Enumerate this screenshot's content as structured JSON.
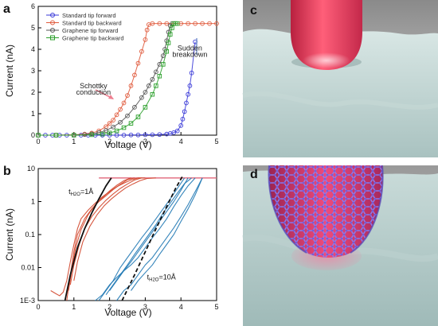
{
  "panels": {
    "a": "a",
    "b": "b",
    "c": "c",
    "d": "d"
  },
  "chart_data": [
    {
      "type": "scatter",
      "panel": "a",
      "xlabel": "Voltage (V)",
      "ylabel": "Current (nA)",
      "xlim": [
        0,
        5
      ],
      "ylim": [
        0,
        6
      ],
      "xticks": [
        "0",
        "1",
        "2",
        "3",
        "4",
        "5"
      ],
      "yticks": [
        "0",
        "1",
        "2",
        "3",
        "4",
        "5",
        "6"
      ],
      "grid": false,
      "legend_position": "top-left",
      "annotations": [
        {
          "text": "Schottky",
          "x": 1.55,
          "y": 2.18
        },
        {
          "text": "conduction",
          "x": 1.55,
          "y": 1.88
        },
        {
          "text": "Sudden",
          "x": 4.25,
          "y": 3.95
        },
        {
          "text": "breakdown",
          "x": 4.25,
          "y": 3.65
        }
      ],
      "series": [
        {
          "name": "Standard tip forward",
          "color": "#3a3ad8",
          "marker": "circle",
          "x": [
            0.0,
            0.2,
            0.4,
            0.6,
            0.8,
            1.0,
            1.2,
            1.4,
            1.6,
            1.8,
            2.0,
            2.2,
            2.4,
            2.6,
            2.8,
            3.0,
            3.2,
            3.4,
            3.6,
            3.7,
            3.8,
            3.9,
            4.0,
            4.05,
            4.1,
            4.15,
            4.2,
            4.25,
            4.3,
            4.4
          ],
          "y": [
            0.0,
            0.0,
            0.0,
            0.0,
            0.0,
            0.0,
            0.0,
            0.0,
            0.0,
            0.0,
            0.0,
            0.0,
            0.0,
            0.01,
            0.01,
            0.02,
            0.02,
            0.03,
            0.05,
            0.08,
            0.12,
            0.2,
            0.45,
            0.75,
            1.1,
            1.5,
            1.9,
            2.3,
            2.9,
            4.35
          ]
        },
        {
          "name": "Standard tip backward",
          "color": "#e05a3c",
          "marker": "circle",
          "x": [
            0.0,
            0.5,
            1.0,
            1.3,
            1.5,
            1.7,
            1.9,
            2.0,
            2.1,
            2.2,
            2.3,
            2.4,
            2.5,
            2.6,
            2.7,
            2.8,
            2.9,
            3.0,
            3.05,
            3.1,
            3.2,
            3.4,
            3.6,
            3.8,
            4.0,
            4.2,
            4.4,
            4.6,
            4.8,
            5.0
          ],
          "y": [
            0.0,
            0.0,
            0.02,
            0.05,
            0.1,
            0.2,
            0.4,
            0.55,
            0.7,
            0.95,
            1.2,
            1.5,
            1.85,
            2.3,
            2.8,
            3.35,
            3.9,
            4.45,
            4.9,
            5.15,
            5.2,
            5.2,
            5.2,
            5.2,
            5.2,
            5.2,
            5.2,
            5.2,
            5.2,
            5.2
          ]
        },
        {
          "name": "Graphene tip forward",
          "color": "#555555",
          "marker": "circle",
          "x": [
            0.0,
            0.5,
            1.0,
            1.3,
            1.5,
            1.7,
            1.9,
            2.1,
            2.3,
            2.5,
            2.7,
            2.9,
            3.0,
            3.1,
            3.2,
            3.3,
            3.4,
            3.5,
            3.55,
            3.6,
            3.65,
            3.7,
            3.75
          ],
          "y": [
            0.0,
            0.0,
            0.01,
            0.03,
            0.06,
            0.12,
            0.22,
            0.38,
            0.6,
            0.9,
            1.3,
            1.75,
            2.0,
            2.3,
            2.6,
            2.95,
            3.3,
            3.7,
            4.0,
            4.4,
            4.8,
            5.1,
            5.2
          ]
        },
        {
          "name": "Graphene tip backward",
          "color": "#2ca02c",
          "marker": "square",
          "x": [
            0.0,
            0.5,
            1.0,
            1.5,
            1.8,
            2.0,
            2.2,
            2.4,
            2.6,
            2.8,
            3.0,
            3.2,
            3.3,
            3.4,
            3.5,
            3.6,
            3.65,
            3.7,
            3.75,
            3.8,
            3.85,
            3.9
          ],
          "y": [
            0.0,
            0.0,
            0.0,
            0.02,
            0.05,
            0.1,
            0.2,
            0.35,
            0.55,
            0.85,
            1.3,
            1.9,
            2.3,
            2.75,
            3.3,
            3.9,
            4.3,
            4.7,
            5.0,
            5.2,
            5.2,
            5.2
          ]
        }
      ]
    },
    {
      "type": "line",
      "panel": "b",
      "xlabel": "Voltage (V)",
      "ylabel": "Current (nA)",
      "xlim": [
        0,
        5
      ],
      "ylim": [
        0.001,
        10
      ],
      "yscale": "log",
      "xticks": [
        "0",
        "1",
        "2",
        "3",
        "4",
        "5"
      ],
      "yticks": [
        "1E-3",
        "0.01",
        "0.1",
        "1",
        "10"
      ],
      "grid": false,
      "annotations": [
        {
          "text": "t",
          "sub": "H2O",
          "after": "=1Å",
          "x": 0.85,
          "y": 1.7
        },
        {
          "text": "t",
          "sub": "H2O",
          "after": "=10Å",
          "x": 3.05,
          "y": 0.0043
        }
      ],
      "series": [
        {
          "color": "#d2452a",
          "x": [
            0.35,
            0.5,
            0.6,
            0.7,
            0.8,
            0.9,
            1.0,
            1.1,
            1.2,
            1.4,
            1.6,
            1.8,
            2.0,
            2.2,
            2.4,
            2.6,
            2.8,
            3.0
          ],
          "y": [
            0.002,
            0.0016,
            0.0014,
            0.0018,
            0.004,
            0.015,
            0.05,
            0.15,
            0.3,
            0.55,
            0.9,
            1.4,
            2.0,
            2.8,
            3.6,
            4.5,
            5.2,
            5.2
          ]
        },
        {
          "color": "#d2452a",
          "x": [
            0.8,
            0.9,
            1.0,
            1.1,
            1.3,
            1.5,
            1.7,
            1.9,
            2.1,
            2.3,
            2.5,
            2.7
          ],
          "y": [
            0.001,
            0.006,
            0.03,
            0.1,
            0.3,
            0.6,
            1.0,
            1.5,
            2.3,
            3.3,
            4.6,
            5.2
          ]
        },
        {
          "color": "#d2452a",
          "x": [
            0.85,
            0.95,
            1.05,
            1.2,
            1.4,
            1.6,
            1.8,
            2.0,
            2.2,
            2.4,
            2.6
          ],
          "y": [
            0.002,
            0.01,
            0.04,
            0.14,
            0.4,
            0.8,
            1.3,
            2.1,
            3.1,
            4.3,
            5.2
          ]
        },
        {
          "color": "#d2452a",
          "x": [
            0.9,
            1.0,
            1.15,
            1.3,
            1.5,
            1.7,
            1.9,
            2.1,
            2.3,
            2.5,
            2.7,
            2.9
          ],
          "y": [
            0.003,
            0.012,
            0.05,
            0.15,
            0.35,
            0.65,
            1.1,
            1.7,
            2.5,
            3.4,
            4.5,
            5.2
          ]
        },
        {
          "color": "#d2452a",
          "x": [
            1.0,
            1.1,
            1.25,
            1.45,
            1.65,
            1.85,
            2.05,
            2.25,
            2.45,
            2.65,
            2.85,
            3.05,
            3.3
          ],
          "y": [
            0.004,
            0.015,
            0.06,
            0.18,
            0.4,
            0.75,
            1.2,
            1.8,
            2.6,
            3.4,
            4.3,
            5.0,
            5.2
          ]
        },
        {
          "color": "#1f78b4",
          "x": [
            1.6,
            1.8,
            2.0,
            2.2,
            2.4,
            2.6,
            2.8,
            3.0,
            3.2,
            3.4,
            3.6,
            3.8,
            4.0,
            4.2,
            4.4
          ],
          "y": [
            0.001,
            0.0015,
            0.003,
            0.005,
            0.008,
            0.012,
            0.02,
            0.04,
            0.08,
            0.15,
            0.3,
            0.7,
            1.5,
            3.0,
            5.2
          ]
        },
        {
          "color": "#1f78b4",
          "x": [
            2.0,
            2.2,
            2.4,
            2.6,
            2.8,
            3.0,
            3.2,
            3.4,
            3.6,
            3.8,
            4.0,
            4.2
          ],
          "y": [
            0.002,
            0.004,
            0.008,
            0.015,
            0.03,
            0.06,
            0.12,
            0.25,
            0.5,
            1.0,
            2.2,
            5.2
          ]
        },
        {
          "color": "#1f78b4",
          "x": [
            1.7,
            1.9,
            2.1,
            2.3,
            2.5,
            2.7,
            2.9,
            3.1,
            3.3,
            3.5,
            3.7,
            3.9,
            4.1
          ],
          "y": [
            0.001,
            0.002,
            0.004,
            0.01,
            0.02,
            0.04,
            0.08,
            0.15,
            0.3,
            0.6,
            1.2,
            2.5,
            5.2
          ]
        },
        {
          "color": "#1f78b4",
          "x": [
            2.2,
            2.4,
            2.6,
            2.8,
            3.0,
            3.2,
            3.4,
            3.6,
            3.8,
            4.0,
            4.2,
            4.4,
            4.6
          ],
          "y": [
            0.001,
            0.002,
            0.003,
            0.006,
            0.012,
            0.02,
            0.04,
            0.08,
            0.16,
            0.35,
            0.8,
            2.0,
            5.2
          ]
        },
        {
          "color": "#1f78b4",
          "x": [
            1.9,
            2.1,
            2.3,
            2.5,
            2.7,
            2.9,
            3.1,
            3.3,
            3.5,
            3.7,
            3.9,
            4.1,
            4.3
          ],
          "y": [
            0.0015,
            0.003,
            0.006,
            0.012,
            0.025,
            0.05,
            0.1,
            0.2,
            0.45,
            0.9,
            1.8,
            3.5,
            5.2
          ]
        },
        {
          "color": "#1f78b4",
          "x": [
            2.6,
            2.8,
            3.0,
            3.2,
            3.4,
            3.6,
            3.8,
            4.0,
            4.2,
            4.4,
            4.6
          ],
          "y": [
            0.002,
            0.004,
            0.007,
            0.012,
            0.025,
            0.05,
            0.1,
            0.25,
            0.6,
            1.6,
            5.2
          ]
        }
      ],
      "fits": [
        {
          "color": "#111111",
          "dash": false,
          "x": [
            0.75,
            0.9,
            1.1,
            1.3,
            1.5,
            1.7,
            1.9,
            2.05
          ],
          "y": [
            0.001,
            0.006,
            0.04,
            0.15,
            0.45,
            1.2,
            3.0,
            5.2
          ]
        },
        {
          "color": "#111111",
          "dash": true,
          "x": [
            2.35,
            2.7,
            3.0,
            3.3,
            3.6,
            3.85,
            4.05
          ],
          "y": [
            0.001,
            0.006,
            0.03,
            0.15,
            0.7,
            2.5,
            6.0
          ]
        }
      ]
    }
  ],
  "colors": {
    "tip": "#f0566e",
    "graphene": "#7f6cd8",
    "surface": "#c8dad8"
  }
}
